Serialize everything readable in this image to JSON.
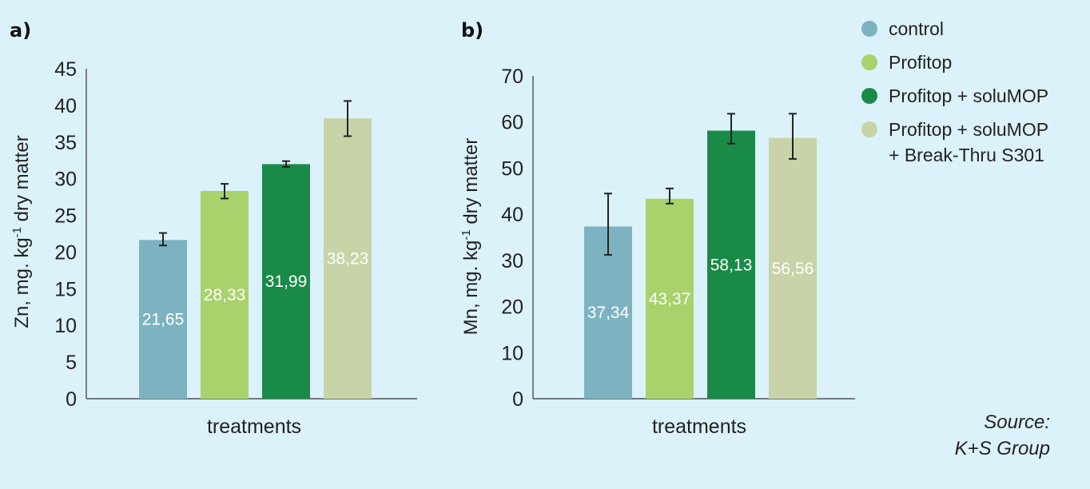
{
  "legend": [
    {
      "label": "control",
      "color": "#7db3c1"
    },
    {
      "label": "Profitop",
      "color": "#a9d16c"
    },
    {
      "label": "Profitop + soluMOP",
      "color": "#1a8a48"
    },
    {
      "label": "Profitop + soluMOP",
      "label2": "+ Break-Thru S301",
      "color": "#c8d3a8"
    }
  ],
  "source": {
    "line1": "Source:",
    "line2": "K+S Group"
  },
  "chart_data": [
    {
      "type": "bar",
      "panel": "a)",
      "xlabel": "treatments",
      "ylabel": "Zn, mg. kg",
      "ylabel_sup": "-1",
      "ylabel_suffix": " dry matter",
      "ylim": [
        0,
        45
      ],
      "yticks": [
        0,
        5,
        10,
        15,
        20,
        25,
        30,
        35,
        40,
        45
      ],
      "grid": false,
      "categories": [
        "control",
        "Profitop",
        "Profitop + soluMOP",
        "Profitop + soluMOP + Break-Thru S301"
      ],
      "values": [
        21.65,
        28.33,
        31.99,
        38.23
      ],
      "value_labels": [
        "21,65",
        "28,33",
        "31,99",
        "38,23"
      ],
      "error_low": [
        20.9,
        27.3,
        31.6,
        35.8
      ],
      "error_high": [
        22.6,
        29.3,
        32.4,
        40.6
      ],
      "colors": [
        "#7db3c1",
        "#a9d16c",
        "#1a8a48",
        "#c8d3a8"
      ]
    },
    {
      "type": "bar",
      "panel": "b)",
      "xlabel": "treatments",
      "ylabel": "Mn, mg. kg",
      "ylabel_sup": "-1",
      "ylabel_suffix": " dry matter",
      "ylim": [
        0,
        70
      ],
      "yticks": [
        0,
        10,
        20,
        30,
        40,
        50,
        60,
        70
      ],
      "grid": false,
      "categories": [
        "control",
        "Profitop",
        "Profitop + soluMOP",
        "Profitop + soluMOP + Break-Thru S301"
      ],
      "values": [
        37.34,
        43.37,
        58.13,
        56.56
      ],
      "value_labels": [
        "37,34",
        "43,37",
        "58,13",
        "56,56"
      ],
      "error_low": [
        31.2,
        42.3,
        55.3,
        52.0
      ],
      "error_high": [
        44.5,
        45.6,
        61.8,
        61.8
      ],
      "colors": [
        "#7db3c1",
        "#a9d16c",
        "#1a8a48",
        "#c8d3a8"
      ]
    }
  ]
}
